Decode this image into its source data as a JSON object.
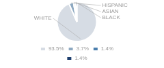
{
  "chart_data": {
    "type": "pie",
    "categories": [
      "WHITE",
      "HISPANIC",
      "ASIAN",
      "BLACK"
    ],
    "values": [
      93.5,
      3.7,
      1.4,
      1.4
    ],
    "value_labels": [
      "93.5%",
      "3.7%",
      "1.4%",
      "1.4%"
    ],
    "colors": [
      "#d6dce4",
      "#8ea9c1",
      "#4a7ead",
      "#1f3f6e"
    ],
    "legend": "bottom"
  }
}
